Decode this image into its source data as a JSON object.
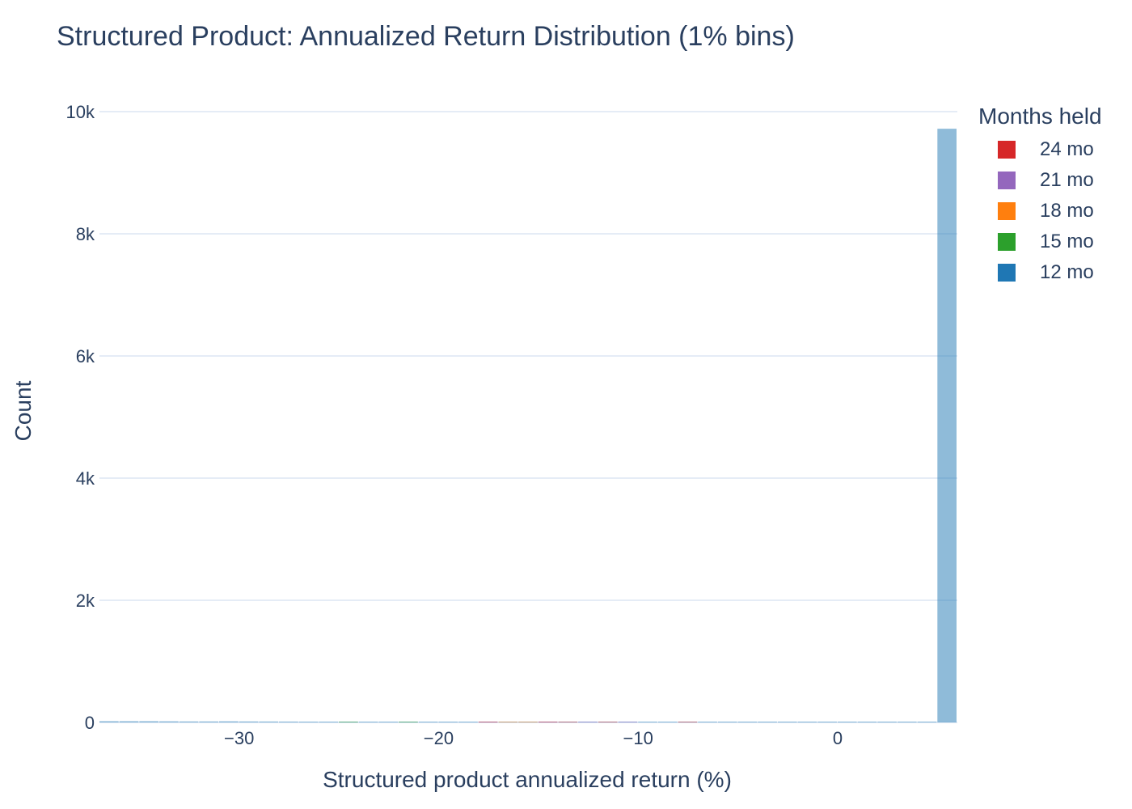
{
  "chart_data": {
    "type": "bar",
    "title": "Structured Product: Annualized Return Distribution (1% bins)",
    "xlabel": "Structured product annualized return (%)",
    "ylabel": "Count",
    "legend_title": "Months held",
    "legend_placement": "right",
    "grid": true,
    "barmode": "overlay",
    "bin_width": 1,
    "xlim": [
      -37,
      6
    ],
    "ylim": [
      0,
      10000
    ],
    "x_ticks": [
      -30,
      -20,
      -10,
      0
    ],
    "x_tick_labels": [
      "−30",
      "−20",
      "−10",
      "0"
    ],
    "y_ticks": [
      0,
      2000,
      4000,
      6000,
      8000,
      10000
    ],
    "y_tick_labels": [
      "0",
      "2k",
      "4k",
      "6k",
      "8k",
      "10k"
    ],
    "series": [
      {
        "name": "24 mo",
        "color": "#d62728",
        "bins": [
          [
            -18,
            5
          ],
          [
            -15,
            5
          ],
          [
            -14,
            5
          ],
          [
            -12,
            5
          ],
          [
            -8,
            5
          ]
        ]
      },
      {
        "name": "21 mo",
        "color": "#9467bd",
        "bins": [
          [
            -18,
            3
          ],
          [
            -15,
            2
          ],
          [
            -13,
            3
          ],
          [
            -11,
            2
          ]
        ]
      },
      {
        "name": "18 mo",
        "color": "#ff7f0e",
        "bins": [
          [
            -17,
            2
          ],
          [
            -16,
            2
          ]
        ]
      },
      {
        "name": "15 mo",
        "color": "#2ca02c",
        "bins": [
          [
            -25,
            2
          ],
          [
            -22,
            2
          ]
        ]
      },
      {
        "name": "12 mo",
        "color": "#1f77b4",
        "bins": [
          [
            -37,
            20
          ],
          [
            -36,
            20
          ],
          [
            -35,
            20
          ],
          [
            -34,
            18
          ],
          [
            -33,
            16
          ],
          [
            -32,
            16
          ],
          [
            -31,
            18
          ],
          [
            -30,
            16
          ],
          [
            -29,
            15
          ],
          [
            -28,
            14
          ],
          [
            -27,
            12
          ],
          [
            -26,
            10
          ],
          [
            -25,
            10
          ],
          [
            -24,
            9
          ],
          [
            -23,
            9
          ],
          [
            -22,
            8
          ],
          [
            -21,
            8
          ],
          [
            -20,
            7
          ],
          [
            -19,
            7
          ],
          [
            -18,
            6
          ],
          [
            -17,
            6
          ],
          [
            -16,
            6
          ],
          [
            -15,
            5
          ],
          [
            -14,
            5
          ],
          [
            -13,
            5
          ],
          [
            -12,
            4
          ],
          [
            -11,
            4
          ],
          [
            -10,
            4
          ],
          [
            -9,
            4
          ],
          [
            -8,
            3
          ],
          [
            -7,
            3
          ],
          [
            -6,
            3
          ],
          [
            -5,
            3
          ],
          [
            -4,
            3
          ],
          [
            -3,
            3
          ],
          [
            -2,
            3
          ],
          [
            -1,
            3
          ],
          [
            0,
            3
          ],
          [
            1,
            3
          ],
          [
            2,
            3
          ],
          [
            3,
            3
          ],
          [
            4,
            3
          ],
          [
            5,
            9720
          ]
        ]
      }
    ]
  }
}
